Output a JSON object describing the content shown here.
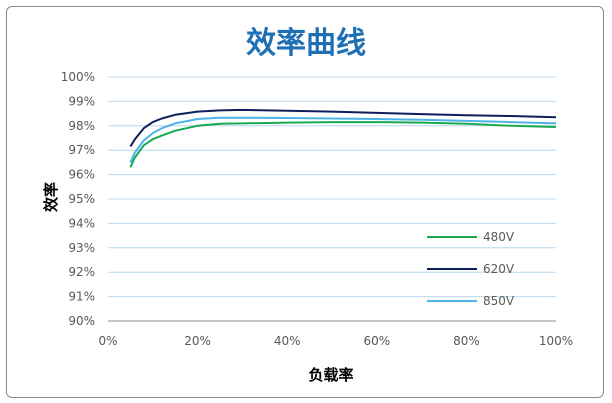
{
  "chart_data": {
    "type": "line",
    "title": "效率曲线",
    "xlabel": "负载率",
    "ylabel": "效率",
    "xlim": [
      0,
      100
    ],
    "ylim": [
      90,
      100
    ],
    "x_ticks": [
      "0%",
      "20%",
      "40%",
      "60%",
      "80%",
      "100%"
    ],
    "y_ticks": [
      "90%",
      "91%",
      "92%",
      "93%",
      "94%",
      "95%",
      "96%",
      "97%",
      "98%",
      "99%",
      "100%"
    ],
    "grid": "horizontal",
    "legend_position": "bottom-right",
    "series": [
      {
        "name": "480V",
        "color": "#1aa850",
        "x": [
          5,
          6,
          8,
          10,
          12,
          15,
          20,
          25,
          30,
          40,
          50,
          60,
          70,
          80,
          90,
          100
        ],
        "y": [
          96.3,
          96.7,
          97.2,
          97.45,
          97.6,
          97.8,
          98.0,
          98.08,
          98.1,
          98.13,
          98.15,
          98.15,
          98.13,
          98.08,
          98.0,
          97.95
        ]
      },
      {
        "name": "620V",
        "color": "#0d1f5c",
        "x": [
          5,
          6,
          8,
          10,
          12,
          15,
          20,
          25,
          30,
          40,
          50,
          60,
          70,
          80,
          90,
          100
        ],
        "y": [
          97.15,
          97.45,
          97.9,
          98.15,
          98.3,
          98.45,
          98.58,
          98.63,
          98.65,
          98.62,
          98.58,
          98.53,
          98.48,
          98.43,
          98.4,
          98.35
        ]
      },
      {
        "name": "850V",
        "color": "#4db3e6",
        "x": [
          5,
          6,
          8,
          10,
          12,
          15,
          20,
          25,
          30,
          40,
          50,
          60,
          70,
          80,
          90,
          100
        ],
        "y": [
          96.5,
          96.9,
          97.4,
          97.7,
          97.9,
          98.1,
          98.28,
          98.33,
          98.33,
          98.32,
          98.3,
          98.28,
          98.25,
          98.2,
          98.15,
          98.1
        ]
      }
    ]
  }
}
